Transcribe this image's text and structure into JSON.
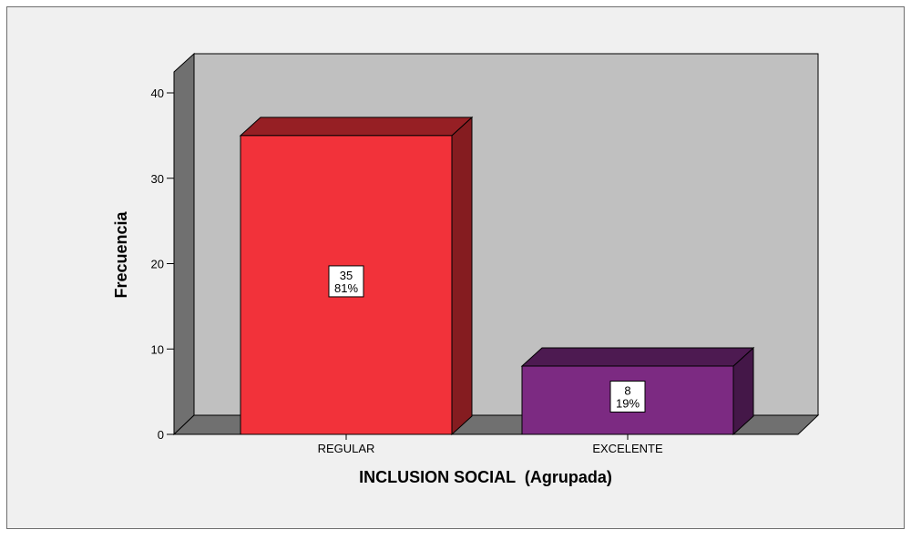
{
  "chart_data": {
    "type": "bar",
    "title": "",
    "xlabel": "INCLUSION SOCIAL  (Agrupada)",
    "ylabel": "Frecuencia",
    "ylim": [
      0,
      40
    ],
    "yticks": [
      0,
      10,
      20,
      30,
      40
    ],
    "categories": [
      "REGULAR",
      "EXCELENTE"
    ],
    "values": [
      35,
      8
    ],
    "percent_labels": [
      "81%",
      "19%"
    ],
    "bar_colors": [
      "#f2323a",
      "#7c2a82"
    ],
    "style": "3d",
    "grid": false,
    "legend": "none",
    "colors": {
      "canvas_background": "#f0f0f0",
      "plot_back_wall": "#c0c0c0",
      "plot_side_wall": "#707070"
    }
  }
}
